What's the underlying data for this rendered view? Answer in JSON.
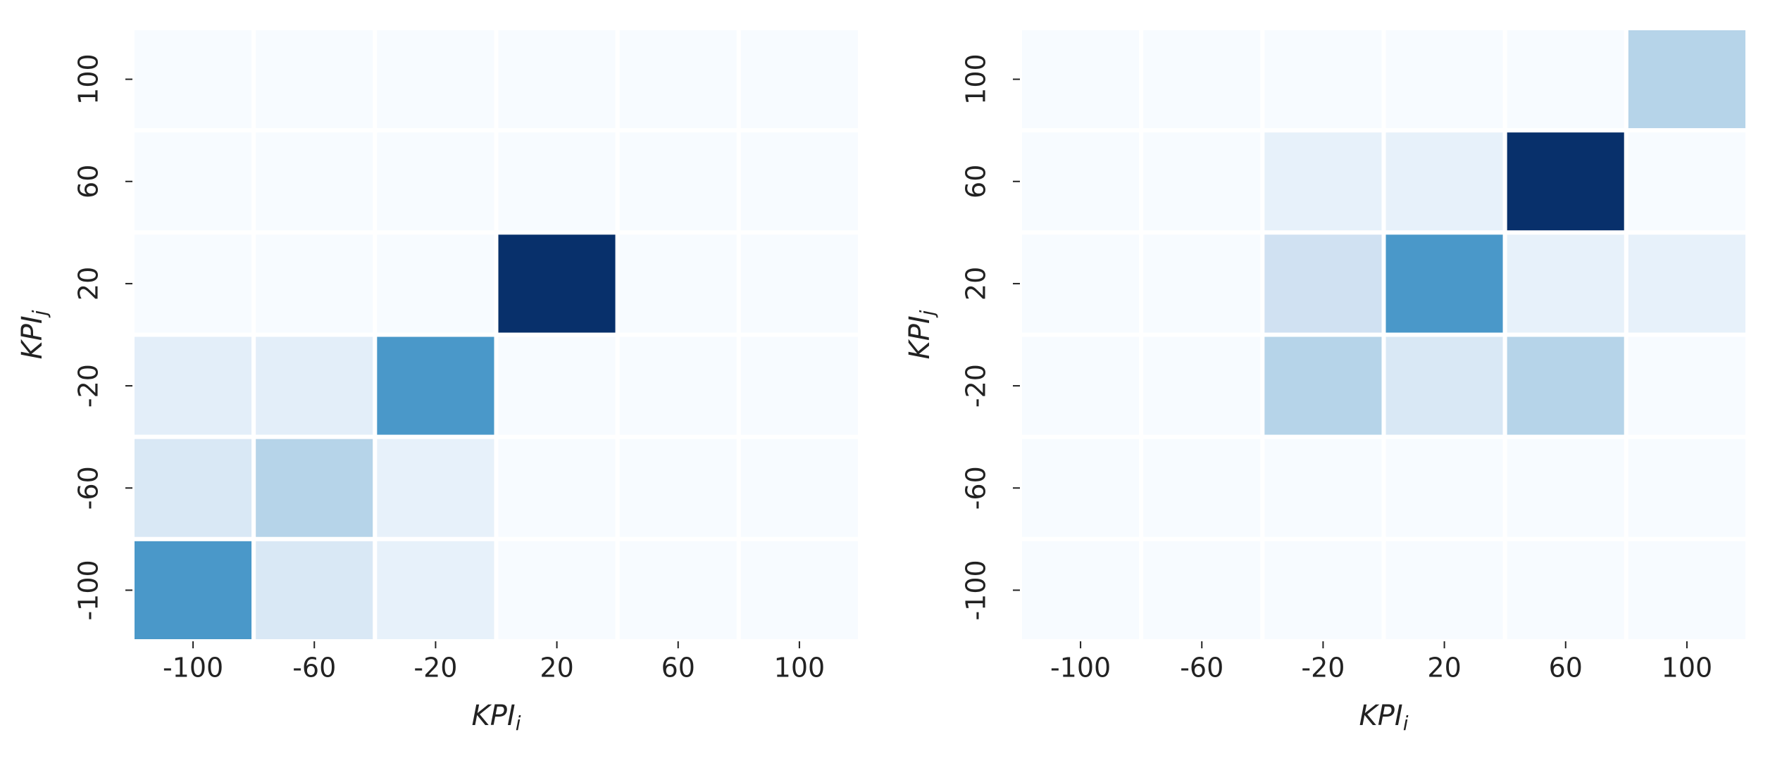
{
  "chart_data": [
    {
      "type": "heatmap",
      "colormap": "Blues",
      "xlabel": "KPI",
      "xlabel_sub": "i",
      "ylabel": "KPI",
      "ylabel_sub": "j",
      "x": [
        -100,
        -60,
        -20,
        20,
        60,
        100
      ],
      "y": [
        100,
        60,
        20,
        -20,
        -60,
        -100
      ],
      "values": [
        [
          0,
          0,
          0,
          0,
          0,
          0
        ],
        [
          0,
          0,
          0,
          0,
          0,
          0
        ],
        [
          0,
          0,
          0,
          1,
          0,
          0
        ],
        [
          0.1,
          0.1,
          0.6,
          0,
          0,
          0
        ],
        [
          0.15,
          0.3,
          0.08,
          0,
          0,
          0
        ],
        [
          0.6,
          0.15,
          0.08,
          0,
          0,
          0
        ]
      ]
    },
    {
      "type": "heatmap",
      "colormap": "Blues",
      "xlabel": "KPI",
      "xlabel_sub": "i",
      "ylabel": "KPI",
      "ylabel_sub": "j",
      "x": [
        -100,
        -60,
        -20,
        20,
        60,
        100
      ],
      "y": [
        100,
        60,
        20,
        -20,
        -60,
        -100
      ],
      "values": [
        [
          0,
          0,
          0,
          0,
          0,
          0.3
        ],
        [
          0,
          0,
          0.08,
          0.08,
          1,
          0
        ],
        [
          0,
          0,
          0.2,
          0.6,
          0.08,
          0.08
        ],
        [
          0,
          0,
          0.3,
          0.15,
          0.3,
          0
        ],
        [
          0,
          0,
          0,
          0,
          0,
          0
        ],
        [
          0,
          0,
          0,
          0,
          0,
          0
        ]
      ]
    }
  ]
}
